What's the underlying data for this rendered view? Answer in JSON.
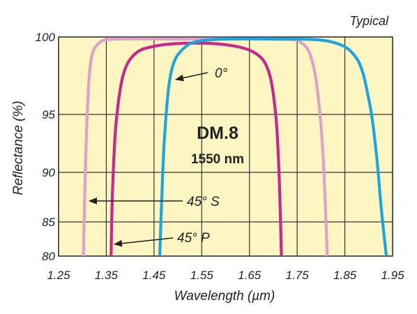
{
  "chart_data": {
    "type": "line",
    "title": "DM.8",
    "subtitle": "1550 nm",
    "corner_label": "Typical",
    "xlabel": "Wavelength (µm)",
    "ylabel": "Reflectance (%)",
    "xlim": [
      1.25,
      1.95
    ],
    "x_ticks": [
      "1.25",
      "1.35",
      "1.45",
      "1.55",
      "1.65",
      "1.75",
      "1.85",
      "1.95"
    ],
    "y_ticks": [
      "80",
      "85",
      "90",
      "95",
      "100"
    ],
    "y_tick_values": [
      80,
      85,
      90,
      95,
      100
    ],
    "grid": true,
    "background_color": "#fdf6c3",
    "series": [
      {
        "name": "0°",
        "color": "#1ba6df",
        "points": [
          [
            1.462,
            80
          ],
          [
            1.466,
            87
          ],
          [
            1.472,
            93
          ],
          [
            1.485,
            97.6
          ],
          [
            1.51,
            99.2
          ],
          [
            1.56,
            99.8
          ],
          [
            1.7,
            100
          ],
          [
            1.82,
            99.7
          ],
          [
            1.875,
            98.6
          ],
          [
            1.9,
            96
          ],
          [
            1.915,
            92
          ],
          [
            1.927,
            86
          ],
          [
            1.937,
            80
          ]
        ]
      },
      {
        "name": "45° P",
        "color": "#c8288c",
        "points": [
          [
            1.36,
            80
          ],
          [
            1.363,
            88
          ],
          [
            1.37,
            94
          ],
          [
            1.385,
            97.5
          ],
          [
            1.41,
            98.9
          ],
          [
            1.45,
            99.4
          ],
          [
            1.52,
            99.6
          ],
          [
            1.6,
            99.5
          ],
          [
            1.66,
            99
          ],
          [
            1.69,
            97.8
          ],
          [
            1.705,
            95
          ],
          [
            1.712,
            90
          ],
          [
            1.717,
            80
          ]
        ]
      },
      {
        "name": "45° S",
        "color": "#dea1c8",
        "points": [
          [
            1.302,
            80
          ],
          [
            1.305,
            88
          ],
          [
            1.31,
            95
          ],
          [
            1.318,
            98.5
          ],
          [
            1.335,
            99.6
          ],
          [
            1.37,
            99.95
          ],
          [
            1.5,
            100
          ],
          [
            1.7,
            99.95
          ],
          [
            1.76,
            99.6
          ],
          [
            1.785,
            98
          ],
          [
            1.8,
            94
          ],
          [
            1.808,
            88
          ],
          [
            1.813,
            80
          ]
        ]
      }
    ],
    "annotations": [
      {
        "text": "0°",
        "series": "0°"
      },
      {
        "text": "45° S",
        "series": "45° S"
      },
      {
        "text": "45° P",
        "series": "45° P"
      }
    ]
  }
}
